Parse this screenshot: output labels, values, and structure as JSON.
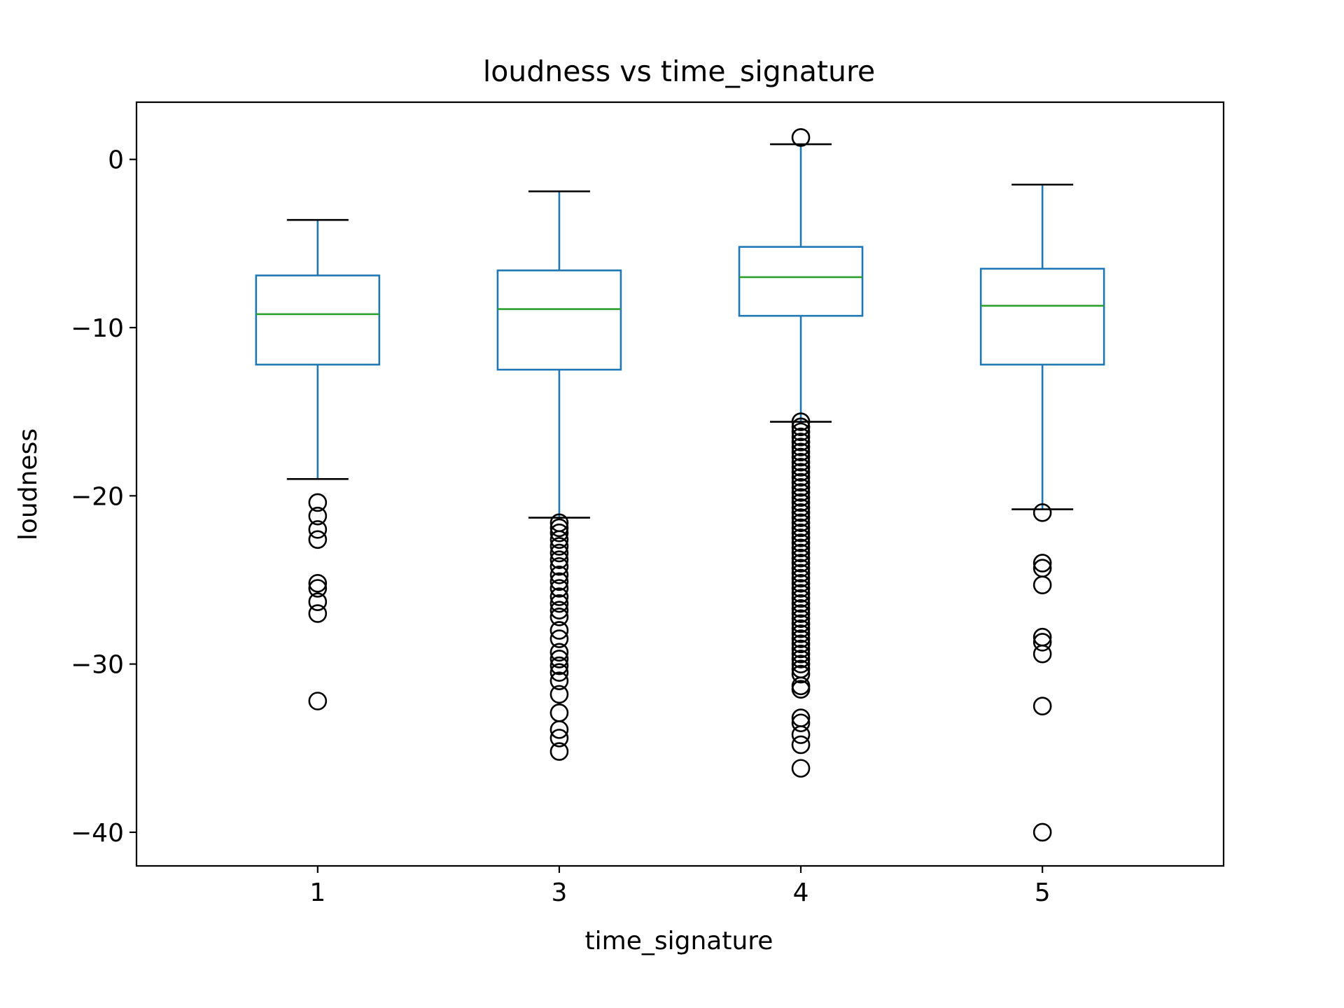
{
  "chart_data": {
    "type": "box",
    "title": "loudness vs time_signature",
    "xlabel": "time_signature",
    "ylabel": "loudness",
    "ylim": [
      -42,
      3.4
    ],
    "yticks": [
      0,
      -10,
      -20,
      -30,
      -40
    ],
    "ytick_labels": [
      "0",
      "−10",
      "−20",
      "−30",
      "−40"
    ],
    "grid": false,
    "legend": "none",
    "colors": {
      "box": "#1f77b4",
      "median": "#2ca02c",
      "cap": "#000000",
      "flier": "#000000"
    },
    "categories": [
      "1",
      "3",
      "4",
      "5"
    ],
    "boxes": [
      {
        "category": "1",
        "whisker_high": -3.6,
        "q3": -6.9,
        "median": -9.2,
        "q1": -12.2,
        "whisker_low": -19.0,
        "outliers": [
          -20.4,
          -21.2,
          -22.0,
          -22.6,
          -25.2,
          -25.5,
          -26.3,
          -27.0,
          -32.2
        ]
      },
      {
        "category": "3",
        "whisker_high": -1.9,
        "q3": -6.6,
        "median": -8.9,
        "q1": -12.5,
        "whisker_low": -21.3,
        "outliers": [
          -21.6,
          -21.9,
          -22.2,
          -22.6,
          -23.0,
          -23.4,
          -23.8,
          -24.2,
          -24.7,
          -25.1,
          -25.5,
          -26.0,
          -26.4,
          -26.8,
          -27.2,
          -28.0,
          -28.5,
          -29.3,
          -29.7,
          -30.1,
          -30.5,
          -31.0,
          -31.8,
          -32.9,
          -33.9,
          -34.4,
          -35.2
        ]
      },
      {
        "category": "4",
        "whisker_high": 0.9,
        "q3": -5.2,
        "median": -7.0,
        "q1": -9.3,
        "whisker_low": -15.6,
        "outliers": [
          1.3,
          -15.6,
          -15.9,
          -16.2,
          -16.5,
          -16.8,
          -17.1,
          -17.4,
          -17.7,
          -18.0,
          -18.3,
          -18.6,
          -18.9,
          -19.2,
          -19.5,
          -19.8,
          -20.1,
          -20.4,
          -20.7,
          -21.0,
          -21.3,
          -21.6,
          -21.9,
          -22.2,
          -22.5,
          -22.8,
          -23.1,
          -23.4,
          -23.7,
          -24.0,
          -24.3,
          -24.6,
          -24.9,
          -25.2,
          -25.5,
          -25.8,
          -26.1,
          -26.4,
          -26.7,
          -27.0,
          -27.3,
          -27.6,
          -27.9,
          -28.2,
          -28.5,
          -28.8,
          -29.1,
          -29.4,
          -29.7,
          -30.0,
          -30.3,
          -30.6,
          -31.3,
          -31.5,
          -33.2,
          -33.5,
          -34.2,
          -34.8,
          -36.2
        ]
      },
      {
        "category": "5",
        "whisker_high": -1.5,
        "q3": -6.5,
        "median": -8.7,
        "q1": -12.2,
        "whisker_low": -20.8,
        "outliers": [
          -21.0,
          -24.0,
          -24.3,
          -25.3,
          -28.4,
          -28.7,
          -29.4,
          -32.5,
          -40.0
        ]
      }
    ]
  }
}
